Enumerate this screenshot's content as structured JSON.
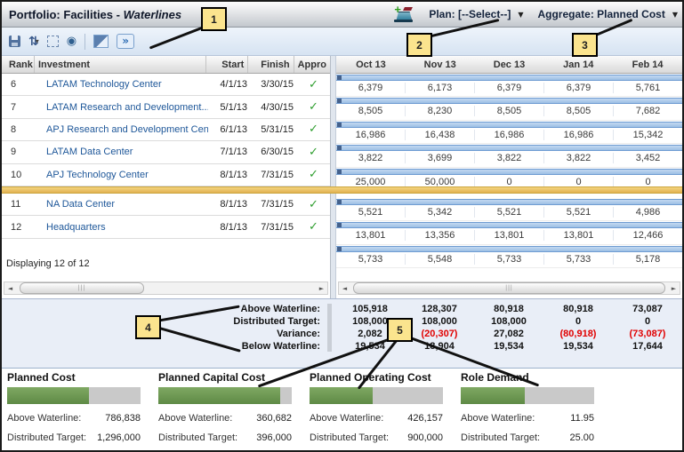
{
  "header": {
    "title_prefix": "Portfolio: Facilities - ",
    "title_italic": "Waterlines",
    "plan_label": "Plan: [--Select--]",
    "aggregate_label": "Aggregate: Planned Cost"
  },
  "icons": {
    "check": "✓",
    "sort": "⇅",
    "sort_caret": "▾",
    "eye": "◉",
    "more": "»",
    "caret_down": "▼",
    "scroll_left": "◄",
    "scroll_right": "►",
    "grip": "|||"
  },
  "callouts": [
    "1",
    "2",
    "3",
    "4",
    "5"
  ],
  "table": {
    "columns": [
      "Rank",
      "Investment",
      "Start",
      "Finish",
      "Appro"
    ],
    "waterline_after_index": 4,
    "footer": "Displaying 12 of 12",
    "rows": [
      {
        "rank": "6",
        "investment": "LATAM Technology Center",
        "start": "4/1/13",
        "finish": "3/30/15"
      },
      {
        "rank": "7",
        "investment": "LATAM Research and Development...",
        "start": "5/1/13",
        "finish": "4/30/15"
      },
      {
        "rank": "8",
        "investment": "APJ Research and Development Center",
        "start": "6/1/13",
        "finish": "5/31/15"
      },
      {
        "rank": "9",
        "investment": "LATAM Data Center",
        "start": "7/1/13",
        "finish": "6/30/15"
      },
      {
        "rank": "10",
        "investment": "APJ Technology Center",
        "start": "8/1/13",
        "finish": "7/31/15"
      },
      {
        "rank": "11",
        "investment": "NA Data Center",
        "start": "8/1/13",
        "finish": "7/31/15"
      },
      {
        "rank": "12",
        "investment": "Headquarters",
        "start": "8/1/13",
        "finish": "7/31/15"
      }
    ]
  },
  "timeline": {
    "months": [
      "Oct 13",
      "Nov 13",
      "Dec 13",
      "Jan 14",
      "Feb 14"
    ],
    "waterline_after_index": 4,
    "rows": [
      [
        "6,379",
        "6,173",
        "6,379",
        "6,379",
        "5,761"
      ],
      [
        "8,505",
        "8,230",
        "8,505",
        "8,505",
        "7,682"
      ],
      [
        "16,986",
        "16,438",
        "16,986",
        "16,986",
        "15,342"
      ],
      [
        "3,822",
        "3,699",
        "3,822",
        "3,822",
        "3,452"
      ],
      [
        "25,000",
        "50,000",
        "0",
        "0",
        "0"
      ],
      [
        "5,521",
        "5,342",
        "5,521",
        "5,521",
        "4,986"
      ],
      [
        "13,801",
        "13,356",
        "13,801",
        "13,801",
        "12,466"
      ],
      [
        "5,733",
        "5,548",
        "5,733",
        "5,733",
        "5,178"
      ]
    ]
  },
  "summary": {
    "rows": [
      {
        "label": "Above Waterline:",
        "values": [
          "105,918",
          "128,307",
          "80,918",
          "80,918",
          "73,087"
        ]
      },
      {
        "label": "Distributed Target:",
        "values": [
          "108,000",
          "108,000",
          "108,000",
          "0",
          "0"
        ]
      },
      {
        "label": "Variance:",
        "values": [
          "2,082",
          "(20,307)",
          "27,082",
          "(80,918)",
          "(73,087)"
        ]
      },
      {
        "label": "Below Waterline:",
        "values": [
          "19,534",
          "18,904",
          "19,534",
          "19,534",
          "17,644"
        ]
      }
    ]
  },
  "panels": [
    {
      "title": "Planned Cost",
      "above_label": "Above Waterline:",
      "above_value": "786,838",
      "target_label": "Distributed Target:",
      "target_value": "1,296,000",
      "pct": 61
    },
    {
      "title": "Planned Capital Cost",
      "above_label": "Above Waterline:",
      "above_value": "360,682",
      "target_label": "Distributed Target:",
      "target_value": "396,000",
      "pct": 91
    },
    {
      "title": "Planned Operating Cost",
      "above_label": "Above Waterline:",
      "above_value": "426,157",
      "target_label": "Distributed Target:",
      "target_value": "900,000",
      "pct": 47
    },
    {
      "title": "Role Demand",
      "above_label": "Above Waterline:",
      "above_value": "11.95",
      "target_label": "Distributed Target:",
      "target_value": "25.00",
      "pct": 48
    }
  ],
  "colors": {
    "link_blue": "#1e5799",
    "check_green": "#2f9e2f",
    "negative_red": "#e10000",
    "waterline_gold": "#e8bf63",
    "gantt_bar_blue": "#a9c7e9",
    "progress_green": "#6b9551",
    "callout_yellow": "#fbe48e"
  }
}
